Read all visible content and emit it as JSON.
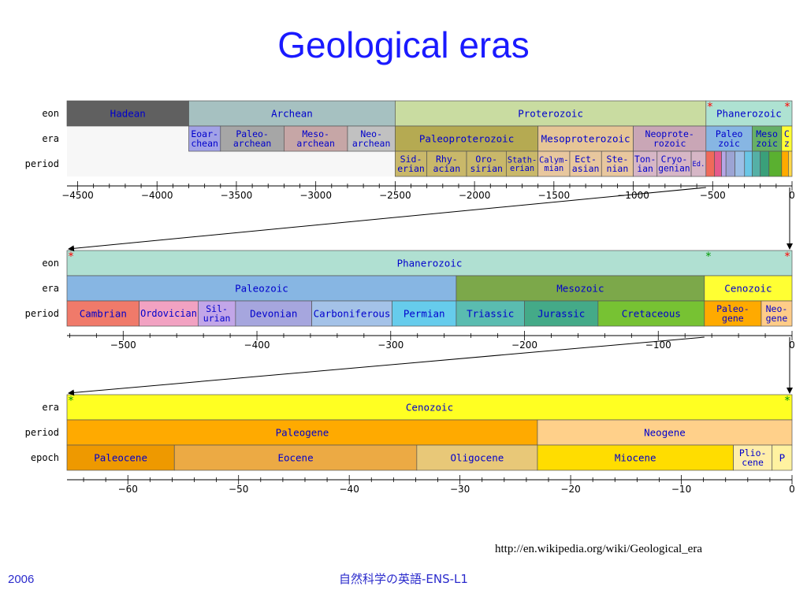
{
  "title": "Geological eras",
  "footer": {
    "url": "http://en.wikipedia.org/wiki/Geological_era",
    "year": "2006",
    "course": "自然科学の英語-ENS-L1"
  },
  "colors": {
    "title": "#1a1aff",
    "star_red": "#ff0000",
    "star_green": "#009900",
    "label_blue": "#0000cc"
  },
  "chart_data": [
    {
      "type": "table",
      "xlim": [
        -4567,
        0
      ],
      "rows": [
        "eon",
        "era",
        "period"
      ],
      "ticks": [
        -4500,
        -4000,
        -3500,
        -3000,
        -2500,
        -2000,
        -1500,
        -1000,
        -500,
        0
      ],
      "eon": [
        {
          "label": "Hadean",
          "start": -4567,
          "end": -3800,
          "color": "#606060"
        },
        {
          "label": "Archean",
          "start": -3800,
          "end": -2500,
          "color": "#a6c1c1"
        },
        {
          "label": "Proterozoic",
          "start": -2500,
          "end": -542,
          "color": "#c9dca1"
        },
        {
          "label": "Phanerozoic",
          "start": -542,
          "end": 0,
          "color": "#aee2d2"
        }
      ],
      "era": [
        {
          "label": "Eoar-\nchean",
          "start": -3800,
          "end": -3600,
          "color": "#a2a2e6"
        },
        {
          "label": "Paleo-\narchean",
          "start": -3600,
          "end": -3200,
          "color": "#a6a6a6"
        },
        {
          "label": "Meso-\narchean",
          "start": -3200,
          "end": -2800,
          "color": "#c6a6a6"
        },
        {
          "label": "Neo-\narchean",
          "start": -2800,
          "end": -2500,
          "color": "#c1c1c1"
        },
        {
          "label": "Paleoproterozoic",
          "start": -2500,
          "end": -1600,
          "color": "#b5aa52"
        },
        {
          "label": "Mesoproterozoic",
          "start": -1600,
          "end": -1000,
          "color": "#e6c696"
        },
        {
          "label": "Neoprote-\nrozoic",
          "start": -1000,
          "end": -542,
          "color": "#c9a6b6"
        },
        {
          "label": "Paleo\nzoic",
          "start": -542,
          "end": -251,
          "color": "#87b6e3"
        },
        {
          "label": "Meso\nzoic",
          "start": -251,
          "end": -65.5,
          "color": "#66b066"
        },
        {
          "label": "C\nz",
          "start": -65.5,
          "end": 0,
          "color": "#ffff33"
        }
      ],
      "period": [
        {
          "label": "Sid-\nerian",
          "start": -2500,
          "end": -2300,
          "color": "#c9b86a"
        },
        {
          "label": "Rhy-\nacian",
          "start": -2300,
          "end": -2050,
          "color": "#c9b86a"
        },
        {
          "label": "Oro-\nsirian",
          "start": -2050,
          "end": -1800,
          "color": "#c9b86a"
        },
        {
          "label": "Stath-\nerian",
          "start": -1800,
          "end": -1600,
          "color": "#c9b86a"
        },
        {
          "label": "Calym-\nmian",
          "start": -1600,
          "end": -1400,
          "color": "#e8c79e"
        },
        {
          "label": "Ect-\nasian",
          "start": -1400,
          "end": -1200,
          "color": "#e8c79e"
        },
        {
          "label": "Ste-\nnian",
          "start": -1200,
          "end": -1000,
          "color": "#e8c79e"
        },
        {
          "label": "Ton-\nian",
          "start": -1000,
          "end": -850,
          "color": "#d6b6c6"
        },
        {
          "label": "Cryo-\ngenian",
          "start": -850,
          "end": -635,
          "color": "#d6b6c6"
        },
        {
          "label": "Ed.",
          "start": -635,
          "end": -542,
          "color": "#d6b6c6"
        },
        {
          "label": "",
          "start": -542,
          "end": -488,
          "color": "#f06a5a"
        },
        {
          "label": "",
          "start": -488,
          "end": -444,
          "color": "#e65a8c"
        },
        {
          "label": "",
          "start": -444,
          "end": -416,
          "color": "#b6a6e6"
        },
        {
          "label": "",
          "start": -416,
          "end": -359,
          "color": "#9ca4d4"
        },
        {
          "label": "",
          "start": -359,
          "end": -299,
          "color": "#9cbfe6"
        },
        {
          "label": "",
          "start": -299,
          "end": -251,
          "color": "#6ac6e6"
        },
        {
          "label": "",
          "start": -251,
          "end": -200,
          "color": "#55b0a6"
        },
        {
          "label": "",
          "start": -200,
          "end": -145,
          "color": "#3aa07a"
        },
        {
          "label": "",
          "start": -145,
          "end": -65.5,
          "color": "#5ab030"
        },
        {
          "label": "",
          "start": -65.5,
          "end": -23,
          "color": "#ffaa00"
        },
        {
          "label": "",
          "start": -23,
          "end": 0,
          "color": "#ffd94a"
        }
      ],
      "markers": [
        {
          "at": -542,
          "symbol": "*",
          "color": "#ff0000"
        },
        {
          "at": 0,
          "symbol": "*",
          "color": "#ff0000"
        }
      ]
    },
    {
      "type": "table",
      "xlim": [
        -542,
        0
      ],
      "rows": [
        "eon",
        "era",
        "period"
      ],
      "ticks": [
        -500,
        -400,
        -300,
        -200,
        -100,
        0
      ],
      "eon": [
        {
          "label": "Phanerozoic",
          "start": -542,
          "end": 0,
          "color": "#b0e0d2"
        }
      ],
      "era": [
        {
          "label": "Paleozoic",
          "start": -542,
          "end": -251,
          "color": "#87b6e3"
        },
        {
          "label": "Mesozoic",
          "start": -251,
          "end": -65.5,
          "color": "#7ca84a"
        },
        {
          "label": "Cenozoic",
          "start": -65.5,
          "end": 0,
          "color": "#ffff33"
        }
      ],
      "period": [
        {
          "label": "Cambrian",
          "start": -542,
          "end": -488,
          "color": "#f07a6a"
        },
        {
          "label": "Ordovician",
          "start": -488,
          "end": -444,
          "color": "#f2a2c2"
        },
        {
          "label": "Sil-\nurian",
          "start": -444,
          "end": -416,
          "color": "#c2a6e8"
        },
        {
          "label": "Devonian",
          "start": -416,
          "end": -359,
          "color": "#a6a6de"
        },
        {
          "label": "Carboniferous",
          "start": -359,
          "end": -299,
          "color": "#a4c2e8"
        },
        {
          "label": "Permian",
          "start": -299,
          "end": -251,
          "color": "#66ccec"
        },
        {
          "label": "Triassic",
          "start": -251,
          "end": -200,
          "color": "#5abcb0"
        },
        {
          "label": "Jurassic",
          "start": -200,
          "end": -145,
          "color": "#44aa88"
        },
        {
          "label": "Cretaceous",
          "start": -145,
          "end": -65.5,
          "color": "#77c233"
        },
        {
          "label": "Paleo-\ngene",
          "start": -65.5,
          "end": -23,
          "color": "#ffaa00"
        },
        {
          "label": "Neo-\ngene",
          "start": -23,
          "end": 0,
          "color": "#ffcc88"
        }
      ],
      "markers": [
        {
          "at": -542,
          "symbol": "*",
          "color": "#ff0000"
        },
        {
          "at": 0,
          "symbol": "*",
          "color": "#ff0000"
        },
        {
          "at": -65.5,
          "symbol": "*",
          "color": "#009900"
        }
      ]
    },
    {
      "type": "table",
      "xlim": [
        -65.5,
        0
      ],
      "rows": [
        "era",
        "period",
        "epoch"
      ],
      "ticks": [
        -60,
        -50,
        -40,
        -30,
        -20,
        -10,
        0
      ],
      "era": [
        {
          "label": "Cenozoic",
          "start": -65.5,
          "end": 0,
          "color": "#ffff22"
        }
      ],
      "period": [
        {
          "label": "Paleogene",
          "start": -65.5,
          "end": -23,
          "color": "#ffaa00"
        },
        {
          "label": "Neogene",
          "start": -23,
          "end": 0,
          "color": "#ffd08a"
        }
      ],
      "epoch": [
        {
          "label": "Paleocene",
          "start": -65.5,
          "end": -55.8,
          "color": "#ee9900"
        },
        {
          "label": "Eocene",
          "start": -55.8,
          "end": -33.9,
          "color": "#ecaa44"
        },
        {
          "label": "Oligocene",
          "start": -33.9,
          "end": -23,
          "color": "#e8c878"
        },
        {
          "label": "Miocene",
          "start": -23,
          "end": -5.3,
          "color": "#ffdd00"
        },
        {
          "label": "Plio-\ncene",
          "start": -5.3,
          "end": -1.8,
          "color": "#ffeeaa"
        },
        {
          "label": "P",
          "start": -1.8,
          "end": 0,
          "color": "#fff2a0"
        }
      ],
      "markers": [
        {
          "at": -65.5,
          "symbol": "*",
          "color": "#009900"
        },
        {
          "at": 0,
          "symbol": "*",
          "color": "#009900"
        }
      ]
    }
  ]
}
